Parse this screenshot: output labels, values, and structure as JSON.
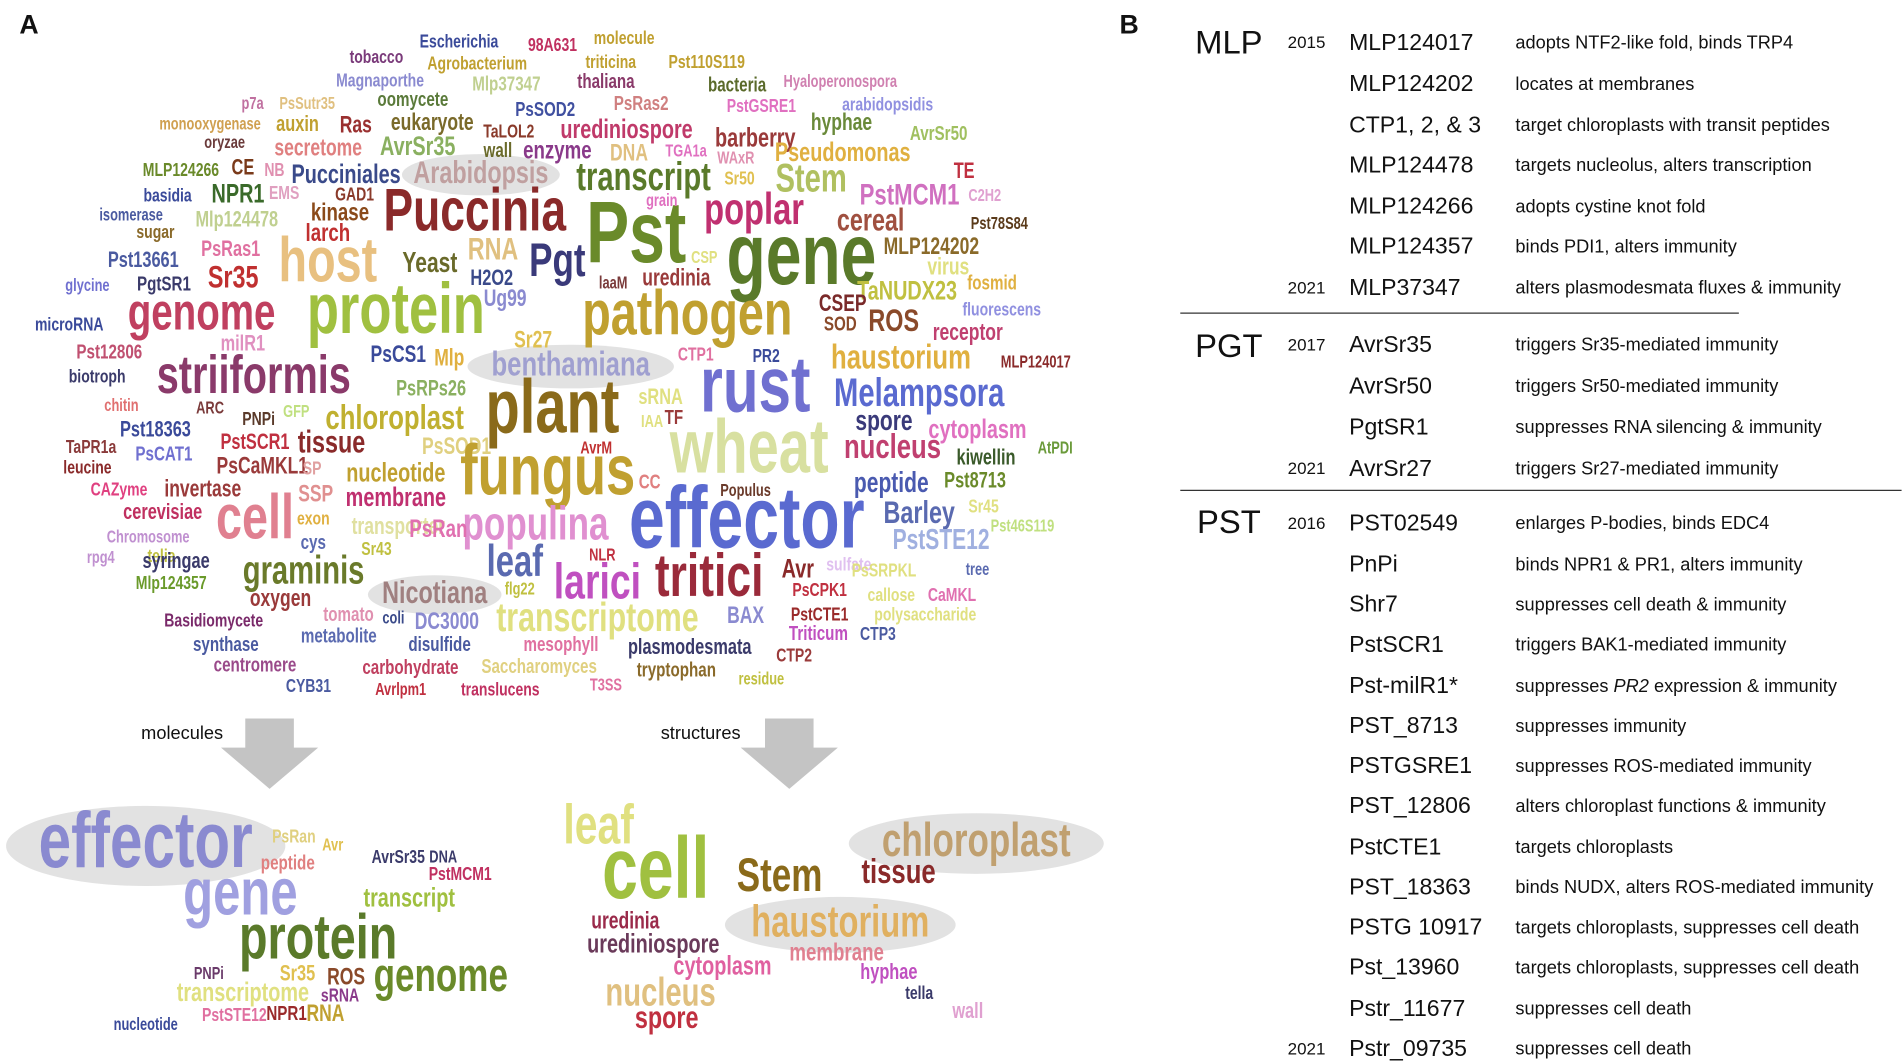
{
  "panel_labels": [
    "A",
    "B"
  ],
  "word_cloud": {
    "words": [
      "Escherichia",
      "98A631",
      "molecule",
      "tobacco",
      "Agrobacterium",
      "triticina",
      "Pst110S119",
      "Magnaporthe",
      "Mlp37347",
      "thaliana",
      "bacteria",
      "Hyaloperonospora",
      "p7a",
      "PsSutr35",
      "oomycete",
      "PsSOD2",
      "PsRas2",
      "PstGSRE1",
      "arabidopsidis",
      "monooxygenase",
      "auxin",
      "Ras",
      "eukaryote",
      "TaLOL2",
      "urediniospore",
      "hyphae",
      "AvrSr50",
      "oryzae",
      "MLP124266",
      "CE",
      "NB",
      "secretome",
      "AvrSr35",
      "wall",
      "enzyme",
      "DNA",
      "TGA1a",
      "barberry",
      "WAxR",
      "Pseudomonas",
      "TE",
      "Arabidopsis",
      "Pucciniales",
      "transcript",
      "Sr50",
      "Stem",
      "PstMCM1",
      "C2H2",
      "GAD1",
      "EMS",
      "NPR1",
      "basidia",
      "isomerase",
      "sugar",
      "Mlp124478",
      "kinase",
      "larch",
      "Puccinia",
      "Pst",
      "grain",
      "poplar",
      "cereal",
      "Pst78S84",
      "host",
      "Yeast",
      "RNA",
      "Pgt",
      "H2O2",
      "CSP",
      "gene",
      "MLP124202",
      "virus",
      "Pst13661",
      "PsRas1",
      "PgtSR1",
      "glycine",
      "Sr35",
      "laaM",
      "uredinia",
      "fosmid",
      "TaNUDX23",
      "CSEP",
      "SOD",
      "ROS",
      "Ug99",
      "microRNA",
      "genome",
      "protein",
      "pathogen",
      "receptor",
      "fluorescens",
      "Sr27",
      "milR1",
      "Pst12806",
      "biotroph",
      "striiformis",
      "PsCS1",
      "Mlp",
      "benthamiana",
      "CTP1",
      "PR2",
      "haustorium",
      "MLP124017",
      "rust",
      "PsRPs26",
      "chitin",
      "ARC",
      "GFP",
      "chloroplast",
      "PsSOD1",
      "plant",
      "sRNA",
      "Melampsora",
      "Pst18363",
      "PNPi",
      "PstSCR1",
      "tissue",
      "IAA",
      "TF",
      "spore",
      "cytoplasm",
      "TaPR1a",
      "PsCAT1",
      "PsCaMKL1",
      "SP",
      "nucleotide",
      "AvrM",
      "wheat",
      "nucleus",
      "kiwellin",
      "AtPDI",
      "leucine",
      "fungus",
      "CAZyme",
      "invertase",
      "SSP",
      "membrane",
      "CC",
      "peptide",
      "Pst8713",
      "Populus",
      "cerevisiae",
      "cell",
      "exon",
      "transporter",
      "populina",
      "effector",
      "Barley",
      "Sr45",
      "Pst46S119",
      "Chromosome",
      "telia",
      "rpg4",
      "cys",
      "Sr43",
      "PsRan",
      "PstSTE12",
      "syringae",
      "graminis",
      "leaf",
      "NLR",
      "larici",
      "tritici",
      "Avr",
      "sulfate",
      "PsSRPKL",
      "tree",
      "Mlp124357",
      "Nicotiana",
      "flg22",
      "PsCPK1",
      "callose",
      "CaMKL",
      "oxygen",
      "Basidiomycete",
      "tomato",
      "coli",
      "DC3000",
      "transcriptome",
      "BAX",
      "PstCTE1",
      "polysaccharide",
      "synthase",
      "metabolite",
      "disulfide",
      "mesophyll",
      "Triticum",
      "CTP3",
      "plasmodesmata",
      "CTP2",
      "centromere",
      "carbohydrate",
      "Saccharomyces",
      "tryptophan",
      "residue",
      "CYB31",
      "Avrlpm1",
      "translucens",
      "T3SS"
    ]
  },
  "arrows": {
    "left": "molecules",
    "right": "structures"
  },
  "molecules_cloud": {
    "words": [
      "effector",
      "PsRan",
      "Avr",
      "peptide",
      "AvrSr35",
      "DNA",
      "PstMCM1",
      "gene",
      "transcript",
      "protein",
      "genome",
      "PNPi",
      "Sr35",
      "ROS",
      "transcriptome",
      "sRNA",
      "nucleotide",
      "PstSTE12",
      "NPR1",
      "RNA"
    ]
  },
  "structures_cloud": {
    "words": [
      "leaf",
      "chloroplast",
      "cell",
      "Stem",
      "tissue",
      "haustorium",
      "uredinia",
      "urediniospore",
      "membrane",
      "cytoplasm",
      "hyphae",
      "nucleus",
      "tella",
      "wall",
      "spore"
    ]
  },
  "table": {
    "groups": [
      {
        "name": "MLP",
        "rows": [
          {
            "year": 2015,
            "name": "MLP124017",
            "description": "adopts NTF2-like fold, binds TRP4"
          },
          {
            "name": "MLP124202",
            "description": "locates at membranes"
          },
          {
            "name": "CTP1, 2, & 3",
            "description": "target chloroplasts with transit peptides"
          },
          {
            "name": "MLP124478",
            "description": "targets nucleolus, alters transcription"
          },
          {
            "name": "MLP124266",
            "description": "adopts cystine knot fold"
          },
          {
            "name": "MLP124357",
            "description": "binds PDI1, alters immunity"
          },
          {
            "year": 2021,
            "name": "MLP37347",
            "description": "alters plasmodesmata fluxes & immunity"
          }
        ]
      },
      {
        "name": "PGT",
        "rows": [
          {
            "year": 2017,
            "name": "AvrSr35",
            "description": "triggers Sr35-mediated immunity"
          },
          {
            "name": "AvrSr50",
            "description": "triggers Sr50-mediated immunity"
          },
          {
            "name": "PgtSR1",
            "description": "suppresses RNA silencing & immunity"
          },
          {
            "year": 2021,
            "name": "AvrSr27",
            "description": "triggers Sr27-mediated immunity"
          }
        ]
      },
      {
        "name": "PST",
        "rows": [
          {
            "year": 2016,
            "name": "PST02549",
            "description": "enlarges P-bodies, binds EDC4"
          },
          {
            "name": "PnPi",
            "description": "binds NPR1 & PR1, alters immunity"
          },
          {
            "name": "Shr7",
            "description": "suppresses cell death & immunity"
          },
          {
            "name": "PstSCR1",
            "description": "triggers BAK1-mediated immunity"
          },
          {
            "name": "Pst-milR1*",
            "description": {
              "before": "suppresses ",
              "italic": "PR2",
              "after": " expression & immunity"
            }
          },
          {
            "name": "PST_8713",
            "description": "suppresses immunity"
          },
          {
            "name": "PSTGSRE1",
            "description": "suppresses ROS-mediated immunity"
          },
          {
            "name": "PST_12806",
            "description": "alters chloroplast functions & immunity"
          },
          {
            "name": "PstCTE1",
            "description": "targets chloroplasts"
          },
          {
            "name": "PST_18363",
            "description": "binds NUDX, alters ROS-mediated immunity"
          },
          {
            "name": "PSTG 10917",
            "description": "targets chloroplasts, suppresses cell death"
          },
          {
            "name": "Pst_13960",
            "description": "targets chloroplasts, suppresses cell death"
          },
          {
            "name": "Pstr_11677",
            "description": "suppresses cell death"
          },
          {
            "year": 2021,
            "name": "Pstr_09735",
            "description": "suppresses cell death"
          }
        ]
      }
    ]
  }
}
